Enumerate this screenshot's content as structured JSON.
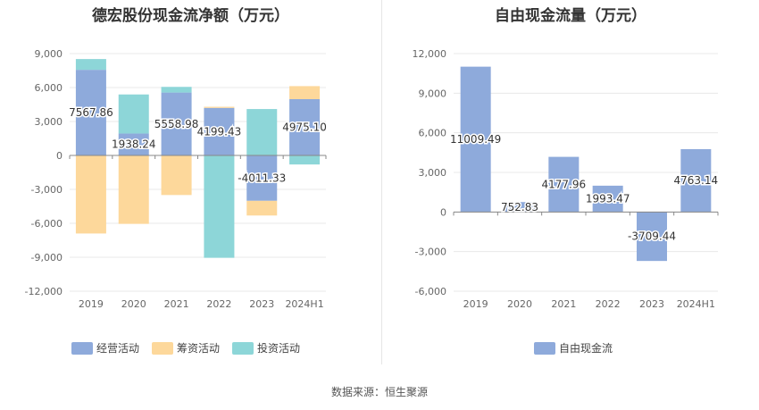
{
  "source": "数据来源：恒生聚源",
  "chart_data": [
    {
      "type": "bar",
      "stacked": true,
      "title": "德宏股份现金流净额（万元）",
      "categories": [
        "2019",
        "2020",
        "2021",
        "2022",
        "2023",
        "2024H1"
      ],
      "ylim": [
        -12000,
        9000
      ],
      "yticks": [
        9000,
        6000,
        3000,
        0,
        -3000,
        -6000,
        -9000,
        -12000
      ],
      "ytick_labels": [
        "9,000",
        "6,000",
        "3,000",
        "0",
        "-3,000",
        "-6,000",
        "-9,000",
        "-12,000"
      ],
      "series": [
        {
          "name": "经营活动",
          "color": "#8eaadb",
          "values": [
            7567.86,
            1938.24,
            5558.98,
            4199.43,
            -4011.33,
            4975.1
          ]
        },
        {
          "name": "筹资活动",
          "color": "#fdd89b",
          "values": [
            -6900,
            -6050,
            -3500,
            100,
            -1300,
            1150
          ]
        },
        {
          "name": "投资活动",
          "color": "#8dd6d8",
          "values": [
            950,
            3450,
            500,
            -9050,
            4100,
            -800
          ]
        }
      ],
      "data_labels": [
        "7567.86",
        "1938.24",
        "5558.98",
        "4199.43",
        "-4011.33",
        "4975.10"
      ],
      "legend": [
        "经营活动",
        "筹资活动",
        "投资活动"
      ],
      "legend_position": "bottom-left"
    },
    {
      "type": "bar",
      "title": "自由现金流量（万元）",
      "categories": [
        "2019",
        "2020",
        "2021",
        "2022",
        "2023",
        "2024H1"
      ],
      "ylim": [
        -6000,
        12000
      ],
      "yticks": [
        12000,
        9000,
        6000,
        3000,
        0,
        -3000,
        -6000
      ],
      "ytick_labels": [
        "12,000",
        "9,000",
        "6,000",
        "3,000",
        "0",
        "-3,000",
        "-6,000"
      ],
      "series": [
        {
          "name": "自由现金流",
          "color": "#8eaadb",
          "values": [
            11009.49,
            752.83,
            4177.96,
            1993.47,
            -3709.44,
            4763.14
          ]
        }
      ],
      "data_labels": [
        "11009.49",
        "752.83",
        "4177.96",
        "1993.47",
        "-3709.44",
        "4763.14"
      ],
      "legend": [
        "自由现金流"
      ],
      "legend_position": "bottom-center"
    }
  ]
}
